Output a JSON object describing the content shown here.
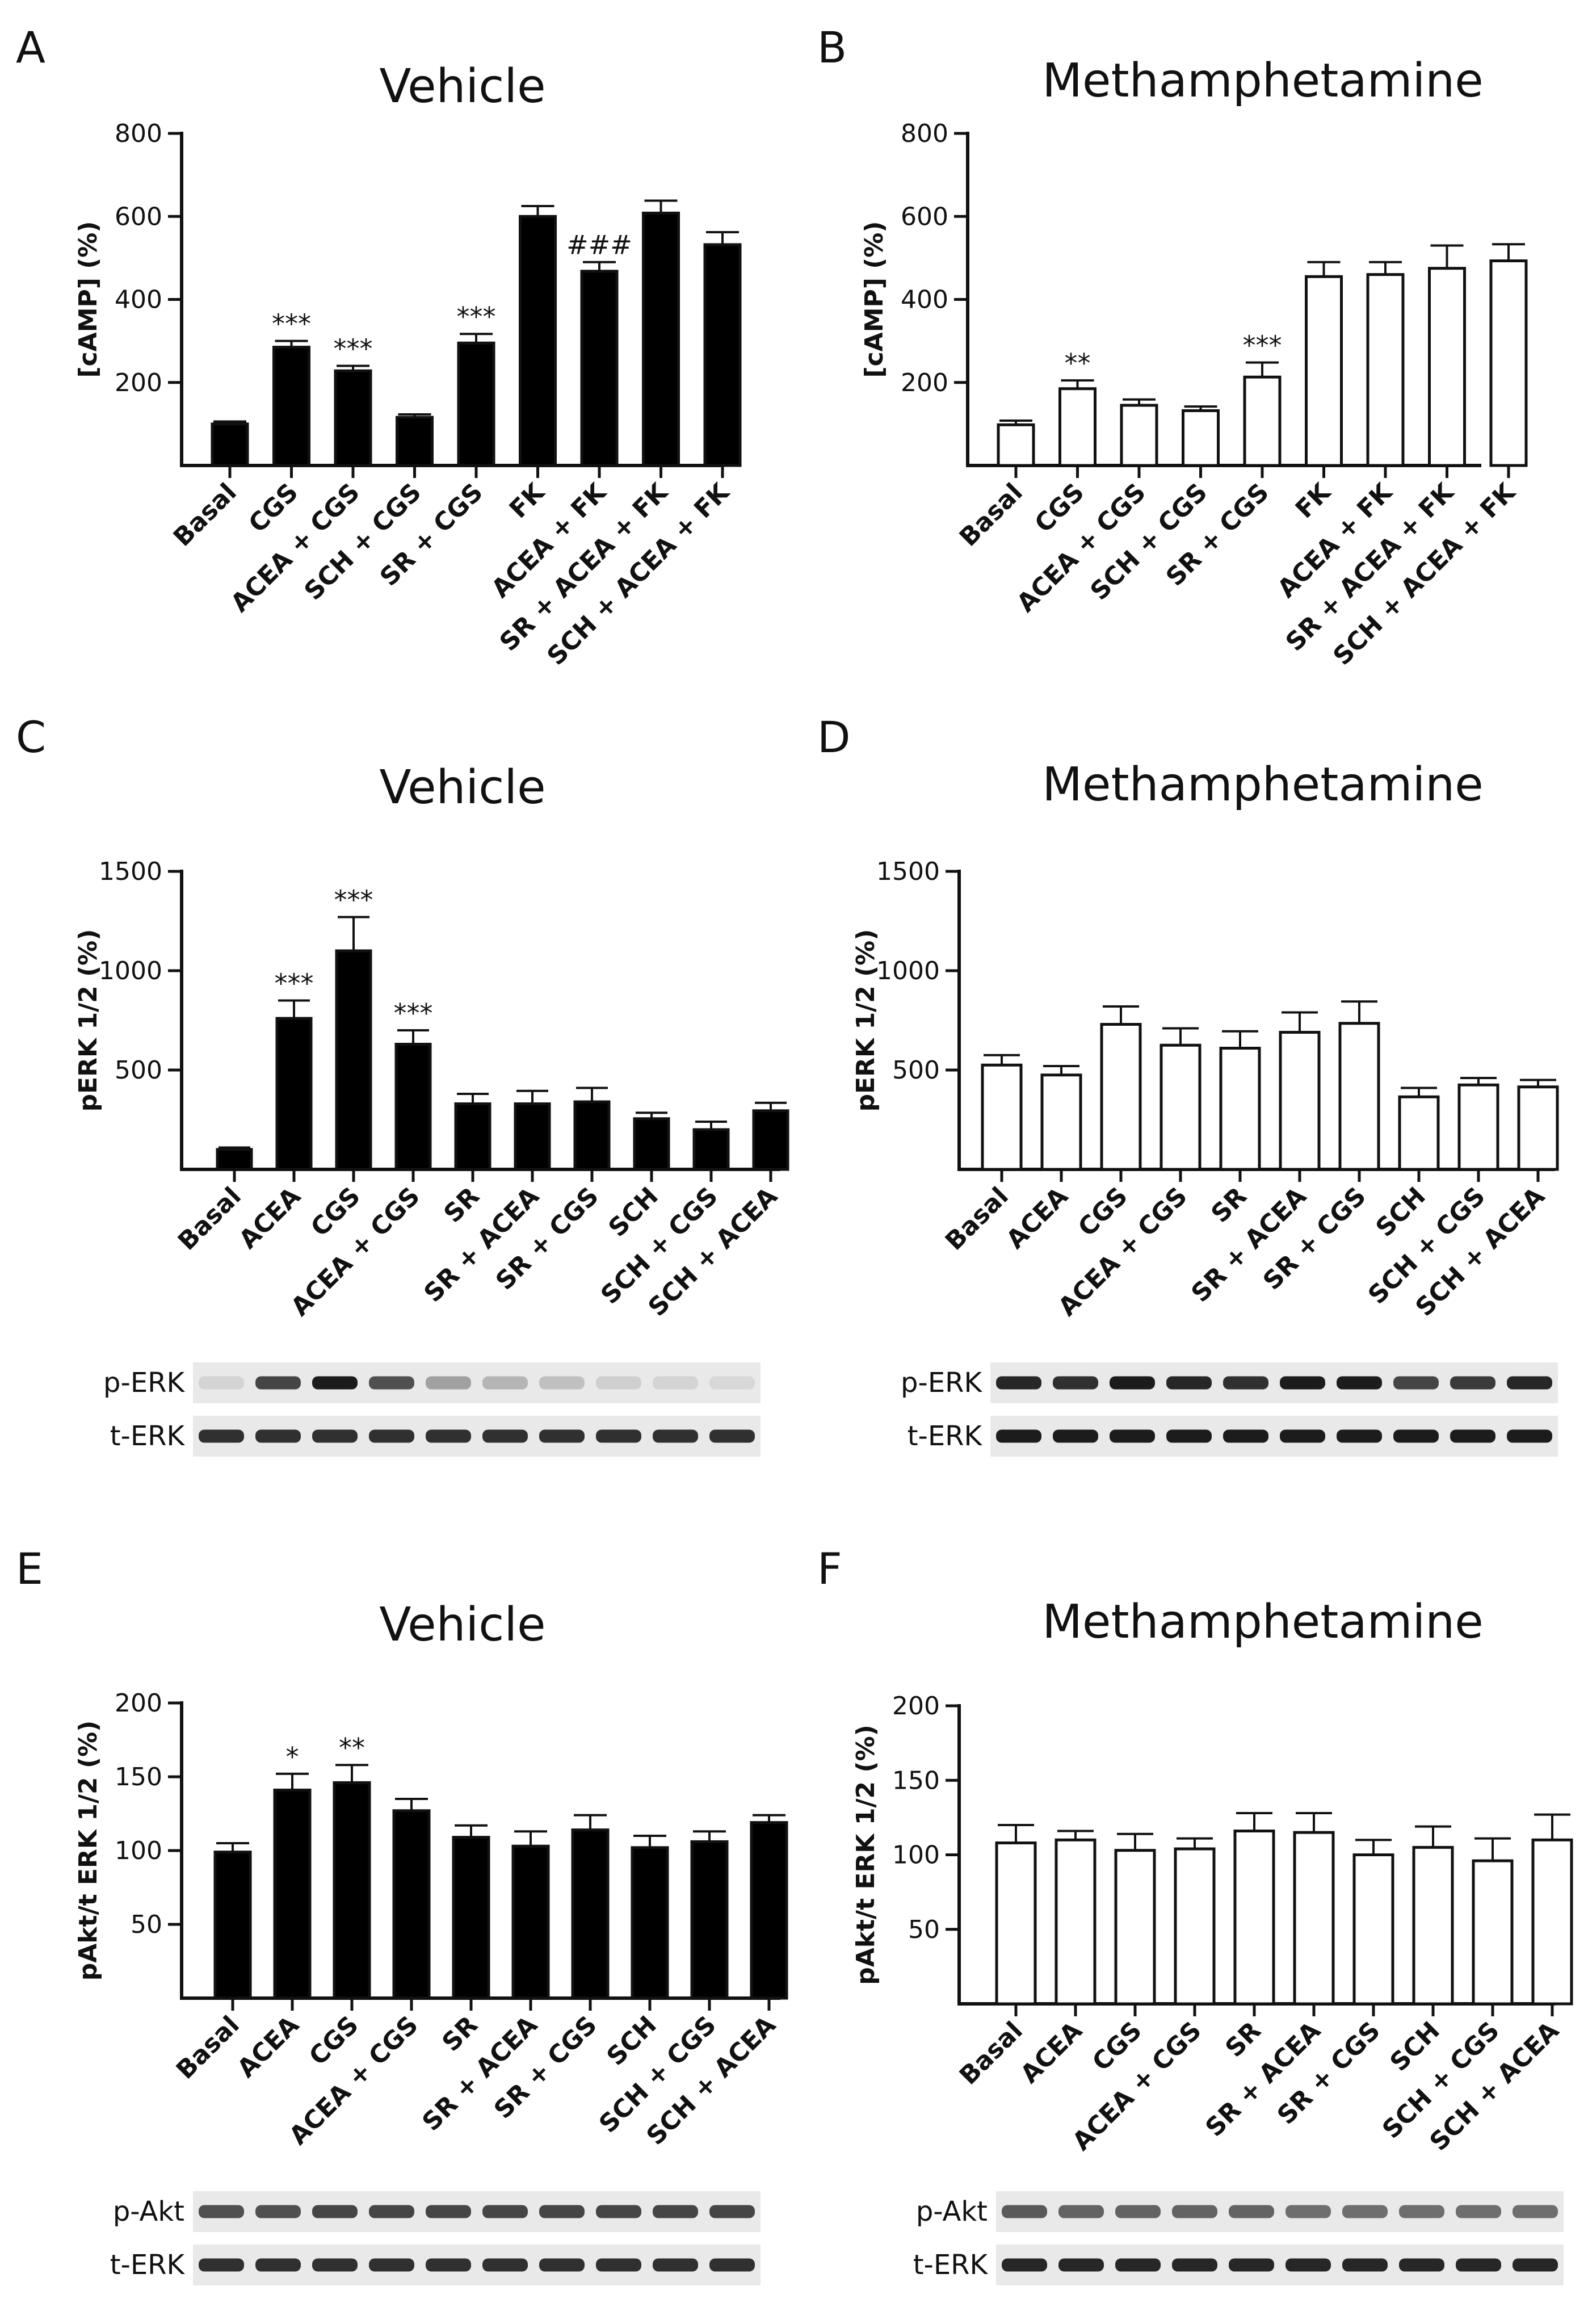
{
  "colors": {
    "ink": "#111111",
    "fill_vehicle": "#000000",
    "fill_meth": "#ffffff",
    "blot_bg": "#e9e9e9",
    "band": "#1c1c1c"
  },
  "chart_data": [
    {
      "panel": "A",
      "type": "bar",
      "title": "Vehicle",
      "ylabel": "[cAMP] (%)",
      "ylim": [
        0,
        800
      ],
      "yticks": [
        200,
        400,
        600,
        800
      ],
      "bar_fill": "black",
      "categories": [
        "Basal",
        "CGS",
        "ACEA + CGS",
        "SCH + CGS",
        "SR + CGS",
        "FK",
        "ACEA + FK",
        "SR + ACEA + FK",
        "SCH + ACEA + FK"
      ],
      "values": [
        100,
        285,
        228,
        116,
        295,
        600,
        468,
        608,
        532
      ],
      "errors": [
        6,
        15,
        12,
        7,
        22,
        25,
        22,
        30,
        30
      ],
      "annotations": [
        "",
        "***",
        "***",
        "",
        "***",
        "",
        "###",
        "",
        ""
      ],
      "blot": null
    },
    {
      "panel": "B",
      "type": "bar",
      "title": "Methamphetamine",
      "ylabel": "[cAMP] (%)",
      "ylim": [
        0,
        800
      ],
      "yticks": [
        200,
        400,
        600,
        800
      ],
      "bar_fill": "white",
      "categories": [
        "Basal",
        "CGS",
        "ACEA + CGS",
        "SCH + CGS",
        "SR + CGS",
        "FK",
        "ACEA + FK",
        "SR + ACEA + FK",
        "SCH + ACEA + FK"
      ],
      "values": [
        98,
        185,
        145,
        132,
        213,
        455,
        460,
        475,
        493
      ],
      "errors": [
        10,
        20,
        14,
        10,
        35,
        35,
        30,
        55,
        40
      ],
      "annotations": [
        "",
        "**",
        "",
        "",
        "***",
        "",
        "",
        "",
        ""
      ],
      "blot": null
    },
    {
      "panel": "C",
      "type": "bar",
      "title": "Vehicle",
      "ylabel": "pERK 1/2 (%)",
      "ylim": [
        0,
        1500
      ],
      "yticks": [
        500,
        1000,
        1500
      ],
      "bar_fill": "black",
      "categories": [
        "Basal",
        "ACEA",
        "CGS",
        "ACEA + CGS",
        "SR",
        "SR + ACEA",
        "SR + CGS",
        "SCH",
        "SCH + CGS",
        "SCH + ACEA"
      ],
      "values": [
        100,
        760,
        1100,
        630,
        330,
        330,
        340,
        255,
        200,
        295
      ],
      "errors": [
        10,
        90,
        170,
        70,
        50,
        65,
        70,
        30,
        40,
        40
      ],
      "annotations": [
        "",
        "***",
        "***",
        "***",
        "",
        "",
        "",
        "",
        "",
        ""
      ],
      "blot": {
        "rows": [
          "p-ERK",
          "t-ERK"
        ],
        "intensities": [
          [
            0.1,
            0.8,
            1.0,
            0.75,
            0.35,
            0.25,
            0.2,
            0.12,
            0.1,
            0.08
          ],
          [
            0.9,
            0.9,
            0.9,
            0.9,
            0.9,
            0.9,
            0.9,
            0.9,
            0.9,
            0.9
          ]
        ]
      }
    },
    {
      "panel": "D",
      "type": "bar",
      "title": "Methamphetamine",
      "ylabel": "pERK 1/2 (%)",
      "ylim": [
        0,
        1500
      ],
      "yticks": [
        500,
        1000,
        1500
      ],
      "bar_fill": "white",
      "categories": [
        "Basal",
        "ACEA",
        "CGS",
        "ACEA + CGS",
        "SR",
        "SR + ACEA",
        "SR + CGS",
        "SCH",
        "SCH + CGS",
        "SCH + ACEA"
      ],
      "values": [
        525,
        475,
        730,
        625,
        610,
        690,
        735,
        365,
        425,
        415
      ],
      "errors": [
        50,
        45,
        90,
        85,
        85,
        100,
        110,
        45,
        35,
        35
      ],
      "annotations": [
        "",
        "",
        "",
        "",
        "",
        "",
        "",
        "",
        "",
        ""
      ],
      "blot": {
        "rows": [
          "p-ERK",
          "t-ERK"
        ],
        "intensities": [
          [
            0.95,
            0.9,
            1.0,
            0.95,
            0.9,
            1.0,
            1.0,
            0.8,
            0.85,
            0.95
          ],
          [
            1.0,
            1.0,
            1.0,
            1.0,
            1.0,
            1.0,
            1.0,
            1.0,
            1.0,
            1.0
          ]
        ]
      }
    },
    {
      "panel": "E",
      "type": "bar",
      "title": "Vehicle",
      "ylabel": "pAkt/t ERK 1/2 (%)",
      "ylim": [
        0,
        200
      ],
      "yticks": [
        50,
        100,
        150,
        200
      ],
      "bar_fill": "black",
      "categories": [
        "Basal",
        "ACEA",
        "CGS",
        "ACEA + CGS",
        "SR",
        "SR + ACEA",
        "SR + CGS",
        "SCH",
        "SCH + CGS",
        "SCH + ACEA"
      ],
      "values": [
        99,
        141,
        146,
        127,
        109,
        103,
        114,
        102,
        106,
        119
      ],
      "errors": [
        6,
        11,
        12,
        8,
        8,
        10,
        10,
        8,
        7,
        5
      ],
      "annotations": [
        "",
        "*",
        "**",
        "",
        "",
        "",
        "",
        "",
        "",
        ""
      ],
      "blot": {
        "rows": [
          "p-Akt",
          "t-ERK"
        ],
        "intensities": [
          [
            0.75,
            0.75,
            0.8,
            0.8,
            0.8,
            0.8,
            0.8,
            0.8,
            0.8,
            0.8
          ],
          [
            0.9,
            0.9,
            0.9,
            0.9,
            0.9,
            0.9,
            0.9,
            0.9,
            0.9,
            0.9
          ]
        ]
      }
    },
    {
      "panel": "F",
      "type": "bar",
      "title": "Methamphetamine",
      "ylabel": "pAkt/t ERK 1/2 (%)",
      "ylim": [
        0,
        200
      ],
      "yticks": [
        50,
        100,
        150,
        200
      ],
      "bar_fill": "white",
      "categories": [
        "Basal",
        "ACEA",
        "CGS",
        "ACEA + CGS",
        "SR",
        "SR + ACEA",
        "SR + CGS",
        "SCH",
        "SCH + CGS",
        "SCH + ACEA"
      ],
      "values": [
        108,
        110,
        103,
        104,
        116,
        115,
        100,
        105,
        96,
        110
      ],
      "errors": [
        12,
        6,
        11,
        7,
        12,
        13,
        10,
        14,
        15,
        17
      ],
      "annotations": [
        "",
        "",
        "",
        "",
        "",
        "",
        "",
        "",
        "",
        ""
      ],
      "blot": {
        "rows": [
          "p-Akt",
          "t-ERK"
        ],
        "intensities": [
          [
            0.7,
            0.65,
            0.65,
            0.65,
            0.65,
            0.6,
            0.6,
            0.6,
            0.6,
            0.6
          ],
          [
            0.95,
            0.95,
            0.95,
            0.95,
            0.95,
            0.95,
            0.95,
            0.95,
            0.95,
            0.95
          ]
        ]
      }
    }
  ]
}
